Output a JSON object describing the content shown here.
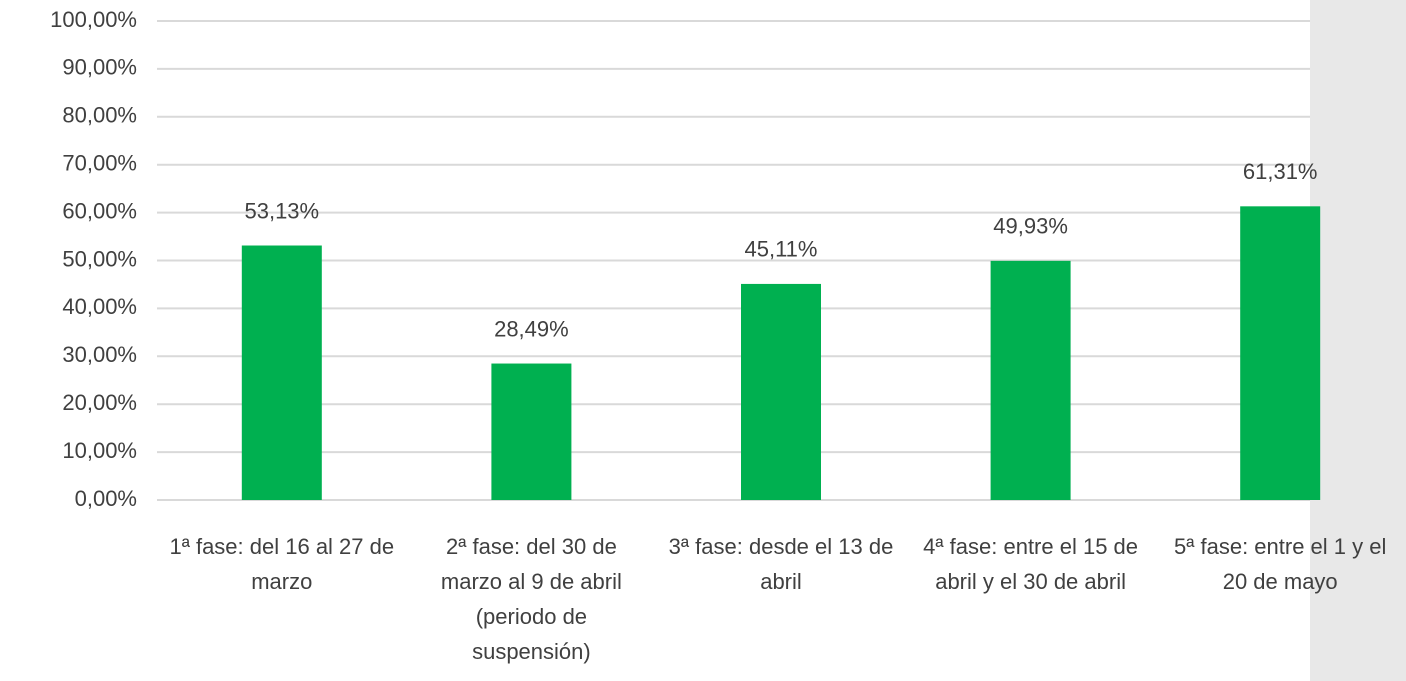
{
  "chart_data": {
    "type": "bar",
    "categories": [
      "1ª fase: del 16 al 27 de marzo",
      "2ª fase: del 30 de marzo al 9 de abril (periodo de suspensión)",
      "3ª fase: desde el 13 de abril",
      "4ª fase: entre el 15 de abril y el 30 de abril",
      "5ª fase: entre el 1 y el 20 de mayo"
    ],
    "values": [
      53.13,
      28.49,
      45.11,
      49.93,
      61.31
    ],
    "value_labels": [
      "53,13%",
      "28,49%",
      "45,11%",
      "49,93%",
      "61,31%"
    ],
    "color": "#00b050",
    "ylim": [
      0,
      100
    ],
    "yticks": [
      {
        "value": 0,
        "label": "0,00%"
      },
      {
        "value": 10,
        "label": "10,00%"
      },
      {
        "value": 20,
        "label": "20,00%"
      },
      {
        "value": 30,
        "label": "30,00%"
      },
      {
        "value": 40,
        "label": "40,00%"
      },
      {
        "value": 50,
        "label": "50,00%"
      },
      {
        "value": 60,
        "label": "60,00%"
      },
      {
        "value": 70,
        "label": "70,00%"
      },
      {
        "value": 80,
        "label": "80,00%"
      },
      {
        "value": 90,
        "label": "90,00%"
      },
      {
        "value": 100,
        "label": "100,00%"
      }
    ],
    "grid": true
  }
}
